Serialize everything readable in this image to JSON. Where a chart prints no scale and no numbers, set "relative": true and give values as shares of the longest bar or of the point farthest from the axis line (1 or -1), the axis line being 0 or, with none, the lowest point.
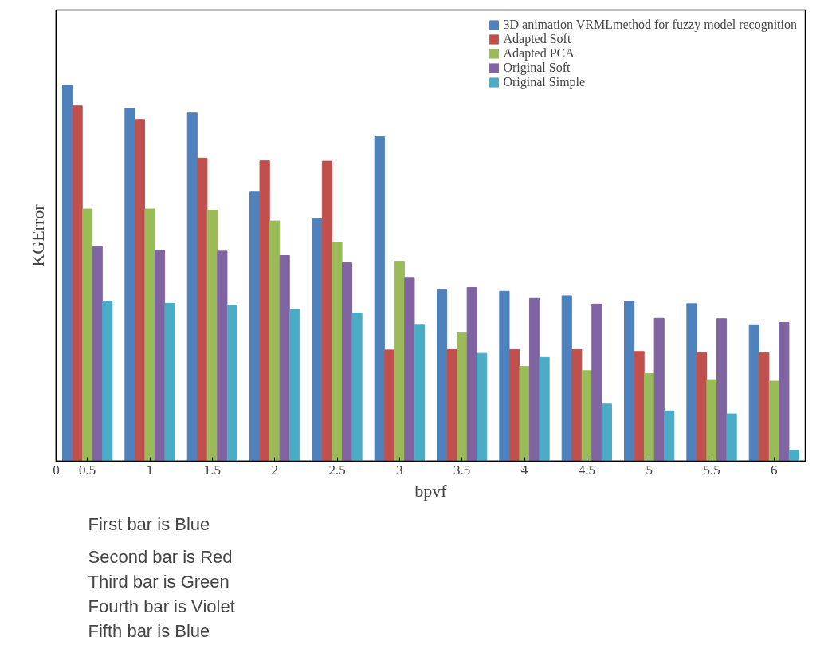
{
  "chart_data": {
    "type": "bar",
    "relative": true,
    "xlabel": "bpvf",
    "ylabel": "KGError",
    "categories": [
      "0.5",
      "1",
      "1.5",
      "2",
      "2.5",
      "3",
      "3.5",
      "4",
      "4.5",
      "5",
      "5.5",
      "6"
    ],
    "series": [
      {
        "name": "3D animation VRMLmethod for fuzzy model recognition",
        "color": "#4f81bd",
        "values": [
          1.0,
          0.938,
          0.926,
          0.716,
          0.645,
          0.863,
          0.456,
          0.452,
          0.44,
          0.426,
          0.419,
          0.363
        ]
      },
      {
        "name": "Adapted Soft",
        "color": "#c0504d",
        "values": [
          0.945,
          0.909,
          0.806,
          0.799,
          0.798,
          0.296,
          0.297,
          0.297,
          0.297,
          0.292,
          0.289,
          0.289
        ]
      },
      {
        "name": "Adapted PCA",
        "color": "#9bbb59",
        "values": [
          0.671,
          0.671,
          0.668,
          0.639,
          0.582,
          0.532,
          0.341,
          0.252,
          0.241,
          0.233,
          0.217,
          0.213
        ]
      },
      {
        "name": "Original Soft",
        "color": "#8064a2",
        "values": [
          0.571,
          0.561,
          0.559,
          0.547,
          0.528,
          0.487,
          0.462,
          0.433,
          0.418,
          0.38,
          0.379,
          0.369
        ]
      },
      {
        "name": "Original Simple",
        "color": "#4bacc6",
        "values": [
          0.426,
          0.42,
          0.415,
          0.404,
          0.394,
          0.364,
          0.287,
          0.276,
          0.152,
          0.134,
          0.126,
          0.029
        ]
      }
    ],
    "legend": "top right",
    "grid": false,
    "annotations": [
      "0",
      "First bar is Blue",
      "Second bar is Red",
      "Third bar is Green",
      "Fourth bar is Violet",
      "Fifth bar is Blue"
    ]
  }
}
